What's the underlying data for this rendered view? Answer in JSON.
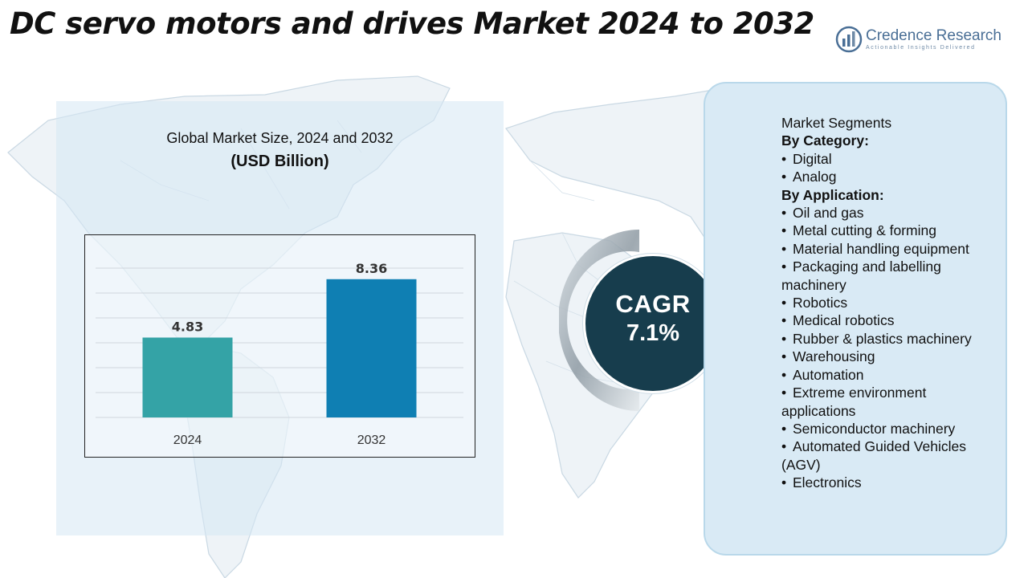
{
  "title": "DC servo motors and drives Market 2024 to 2032",
  "brand": {
    "name": "Credence Research",
    "tagline": "Actionable Insights Delivered",
    "color": "#4a6f96"
  },
  "chart_panel": {
    "heading": "Global Market Size, 2024 and 2032",
    "unit": "(USD Billion)"
  },
  "chart_data": {
    "type": "bar",
    "categories": [
      "2024",
      "2032"
    ],
    "values": [
      4.83,
      8.36
    ],
    "value_labels": [
      "4.83",
      "8.36"
    ],
    "bar_colors": [
      "#34a3a6",
      "#0f7fb3"
    ],
    "ylim": [
      0,
      10
    ],
    "grid": true,
    "xlabel": "",
    "ylabel": ""
  },
  "cagr": {
    "label": "CAGR",
    "value": "7.1%",
    "color": "#173d4d"
  },
  "segments": {
    "heading": "Market Segments",
    "groups": [
      {
        "label": "By Category:",
        "items": [
          "Digital",
          "Analog"
        ]
      },
      {
        "label": "By Application:",
        "items": [
          "Oil and gas",
          "Metal cutting & forming",
          "Material handling equipment",
          "Packaging and labelling machinery",
          "Robotics",
          "Medical robotics",
          "Rubber & plastics machinery",
          "Warehousing",
          "Automation",
          "Extreme environment applications",
          "Semiconductor machinery",
          "Automated Guided Vehicles (AGV)",
          "Electronics"
        ]
      }
    ]
  }
}
